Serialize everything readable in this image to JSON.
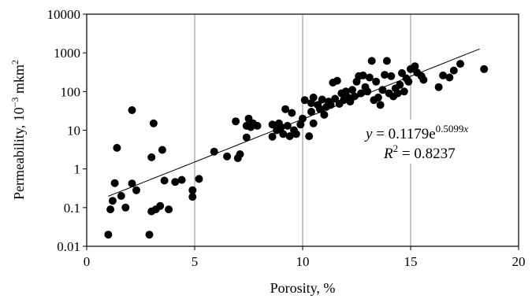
{
  "chart_data": {
    "type": "scatter",
    "title": "",
    "xlabel": "Porosity, %",
    "ylabel_main": "Permeability, 10",
    "ylabel_exp": "−3",
    "ylabel_unit": " mkm",
    "ylabel_unit_exp": "2",
    "xlim": [
      0,
      20
    ],
    "ylim": [
      0.01,
      10000
    ],
    "y_scale": "log",
    "grid": "vertical",
    "x_ticks": [
      "0",
      "5",
      "10",
      "15",
      "20"
    ],
    "y_ticks": [
      "0.01",
      "0.1",
      "1",
      "10",
      "100",
      "1000",
      "10000"
    ],
    "marker_color": "#000000",
    "trendline": {
      "type": "exponential",
      "a": 0.1179,
      "b": 0.5099,
      "x_range": [
        1,
        18.2
      ],
      "equation_y": "y",
      "equation_eq": " = 0.1179e",
      "equation_exp": "0.5099",
      "equation_x": "x",
      "r2_r": "R",
      "r2_exp": "2",
      "r2_value": " = 0.8237"
    },
    "points": [
      [
        1.0,
        0.02
      ],
      [
        1.1,
        0.09
      ],
      [
        1.2,
        0.15
      ],
      [
        1.3,
        0.43
      ],
      [
        1.4,
        3.5
      ],
      [
        1.6,
        0.2
      ],
      [
        1.8,
        0.1
      ],
      [
        2.1,
        33
      ],
      [
        2.1,
        0.42
      ],
      [
        2.3,
        0.28
      ],
      [
        2.9,
        0.02
      ],
      [
        3.0,
        2.0
      ],
      [
        3.0,
        0.08
      ],
      [
        3.1,
        15
      ],
      [
        3.2,
        0.09
      ],
      [
        3.4,
        0.11
      ],
      [
        3.5,
        3.1
      ],
      [
        3.6,
        0.5
      ],
      [
        3.8,
        0.09
      ],
      [
        4.1,
        0.46
      ],
      [
        4.4,
        0.52
      ],
      [
        4.9,
        0.28
      ],
      [
        4.9,
        0.19
      ],
      [
        5.2,
        0.55
      ],
      [
        5.9,
        2.8
      ],
      [
        6.5,
        2.1
      ],
      [
        6.9,
        17
      ],
      [
        7.0,
        1.9
      ],
      [
        7.1,
        2.4
      ],
      [
        7.4,
        13
      ],
      [
        7.4,
        6.5
      ],
      [
        7.5,
        20
      ],
      [
        7.6,
        12
      ],
      [
        7.7,
        15
      ],
      [
        7.9,
        13
      ],
      [
        8.6,
        14
      ],
      [
        8.6,
        6.8
      ],
      [
        8.8,
        10
      ],
      [
        8.9,
        15
      ],
      [
        9.0,
        12
      ],
      [
        9.1,
        8
      ],
      [
        9.2,
        35
      ],
      [
        9.3,
        13
      ],
      [
        9.4,
        7
      ],
      [
        9.5,
        28
      ],
      [
        9.6,
        10
      ],
      [
        9.7,
        8
      ],
      [
        9.9,
        14
      ],
      [
        10.0,
        20
      ],
      [
        10.1,
        60
      ],
      [
        10.3,
        7
      ],
      [
        10.4,
        30
      ],
      [
        10.4,
        50
      ],
      [
        10.5,
        70
      ],
      [
        10.5,
        15
      ],
      [
        10.7,
        45
      ],
      [
        10.8,
        35
      ],
      [
        10.9,
        62
      ],
      [
        11.0,
        25
      ],
      [
        11.1,
        40
      ],
      [
        11.2,
        55
      ],
      [
        11.3,
        45
      ],
      [
        11.4,
        170
      ],
      [
        11.5,
        65
      ],
      [
        11.6,
        190
      ],
      [
        11.7,
        48
      ],
      [
        11.8,
        90
      ],
      [
        11.9,
        60
      ],
      [
        12.0,
        100
      ],
      [
        12.1,
        70
      ],
      [
        12.2,
        55
      ],
      [
        12.3,
        110
      ],
      [
        12.4,
        75
      ],
      [
        12.5,
        180
      ],
      [
        12.6,
        250
      ],
      [
        12.7,
        90
      ],
      [
        12.8,
        260
      ],
      [
        12.9,
        130
      ],
      [
        13.0,
        100
      ],
      [
        13.1,
        230
      ],
      [
        13.2,
        620
      ],
      [
        13.3,
        60
      ],
      [
        13.4,
        180
      ],
      [
        13.5,
        70
      ],
      [
        13.6,
        45
      ],
      [
        13.7,
        110
      ],
      [
        13.8,
        270
      ],
      [
        13.9,
        620
      ],
      [
        14.0,
        90
      ],
      [
        14.1,
        250
      ],
      [
        14.2,
        75
      ],
      [
        14.3,
        120
      ],
      [
        14.4,
        90
      ],
      [
        14.5,
        150
      ],
      [
        14.6,
        300
      ],
      [
        14.7,
        100
      ],
      [
        14.8,
        220
      ],
      [
        14.9,
        180
      ],
      [
        15.0,
        380
      ],
      [
        15.2,
        450
      ],
      [
        15.3,
        310
      ],
      [
        15.5,
        250
      ],
      [
        15.6,
        200
      ],
      [
        16.3,
        130
      ],
      [
        16.5,
        260
      ],
      [
        16.8,
        230
      ],
      [
        17.0,
        350
      ],
      [
        17.3,
        520
      ],
      [
        18.4,
        380
      ]
    ]
  }
}
